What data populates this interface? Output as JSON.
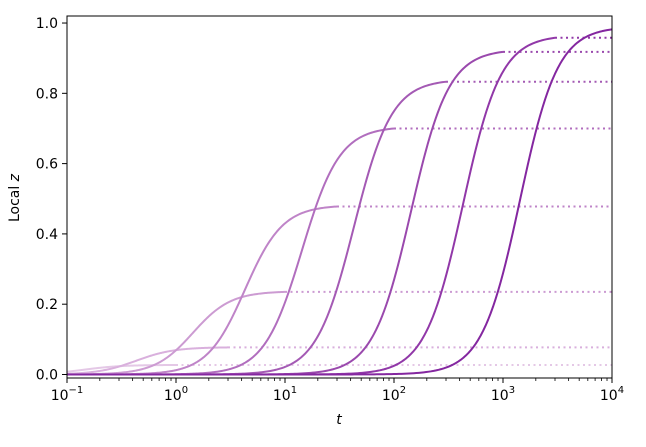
{
  "chart_data": {
    "type": "line",
    "title": "",
    "xlabel": "t",
    "ylabel": "Local z",
    "xscale": "log",
    "xlim": [
      0.1,
      10000
    ],
    "ylim": [
      -0.01,
      1.02
    ],
    "grid": false,
    "legend": "none",
    "x_ticks": [
      0.1,
      1,
      10,
      100,
      1000,
      10000
    ],
    "x_tick_labels": [
      {
        "base": "10",
        "exp": "−1"
      },
      {
        "base": "10",
        "exp": "0"
      },
      {
        "base": "10",
        "exp": "1"
      },
      {
        "base": "10",
        "exp": "2"
      },
      {
        "base": "10",
        "exp": "3"
      },
      {
        "base": "10",
        "exp": "4"
      }
    ],
    "y_ticks": [
      0.0,
      0.2,
      0.4,
      0.6,
      0.8,
      1.0
    ],
    "y_tick_labels": [
      "0.0",
      "0.2",
      "0.4",
      "0.6",
      "0.8",
      "1.0"
    ],
    "series": [
      {
        "color": "#e4c8e6",
        "end_t": 1,
        "plateau": 0.027
      },
      {
        "color": "#d9b0dd",
        "end_t": 3,
        "plateau": 0.077
      },
      {
        "color": "#cc9bd2",
        "end_t": 10,
        "plateau": 0.235
      },
      {
        "color": "#bf84c8",
        "end_t": 30,
        "plateau": 0.478
      },
      {
        "color": "#b16ebe",
        "end_t": 100,
        "plateau": 0.7
      },
      {
        "color": "#a45ab4",
        "end_t": 300,
        "plateau": 0.833
      },
      {
        "color": "#9a49ad",
        "end_t": 1000,
        "plateau": 0.918
      },
      {
        "color": "#9138a8",
        "end_t": 3000,
        "plateau": 0.958
      },
      {
        "color": "#8427a0",
        "end_t": 10000,
        "plateau": 0.982
      }
    ]
  }
}
